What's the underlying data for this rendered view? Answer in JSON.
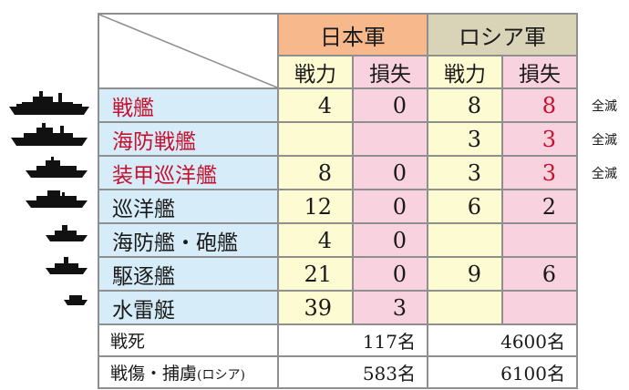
{
  "headers": {
    "japan": "日本軍",
    "russia": "ロシア軍",
    "strength": "戦力",
    "losses": "損失"
  },
  "rows": [
    {
      "name": "戦艦",
      "red": true,
      "jp_strength": "4",
      "jp_loss": "0",
      "ru_strength": "8",
      "ru_loss": "8",
      "ru_loss_red": true,
      "note": "全滅",
      "icon": "battleship-icon"
    },
    {
      "name": "海防戦艦",
      "red": true,
      "jp_strength": "",
      "jp_loss": "",
      "ru_strength": "3",
      "ru_loss": "3",
      "ru_loss_red": true,
      "note": "全滅",
      "icon": "coastal-battleship-icon"
    },
    {
      "name": "装甲巡洋艦",
      "red": true,
      "jp_strength": "8",
      "jp_loss": "0",
      "ru_strength": "3",
      "ru_loss": "3",
      "ru_loss_red": true,
      "note": "全滅",
      "icon": "armored-cruiser-icon"
    },
    {
      "name": "巡洋艦",
      "red": false,
      "jp_strength": "12",
      "jp_loss": "0",
      "ru_strength": "6",
      "ru_loss": "2",
      "ru_loss_red": false,
      "note": "",
      "icon": "cruiser-icon"
    },
    {
      "name": "海防艦・砲艦",
      "red": false,
      "jp_strength": "4",
      "jp_loss": "0",
      "ru_strength": "",
      "ru_loss": "",
      "ru_loss_red": false,
      "note": "",
      "icon": "gunboat-icon"
    },
    {
      "name": "駆逐艦",
      "red": false,
      "jp_strength": "21",
      "jp_loss": "0",
      "ru_strength": "9",
      "ru_loss": "6",
      "ru_loss_red": false,
      "note": "",
      "icon": "destroyer-icon"
    },
    {
      "name": "水雷艇",
      "red": false,
      "jp_strength": "39",
      "jp_loss": "3",
      "ru_strength": "",
      "ru_loss": "",
      "ru_loss_red": false,
      "note": "",
      "icon": "torpedo-boat-icon"
    }
  ],
  "footer": {
    "killed_label": "戦死",
    "killed_jp": "117名",
    "killed_ru": "4600名",
    "wounded_label": "戦傷・捕虜",
    "wounded_label_small": "(ロシア)",
    "wounded_jp": "583名",
    "wounded_ru": "6100名"
  },
  "colors": {
    "japan_header": "#f7b98b",
    "russia_header": "#d9d3b7",
    "strength_bg": "#fdfbd2",
    "loss_bg": "#f8d3df",
    "name_bg": "#d6ecf8",
    "red_text": "#c8102e"
  }
}
